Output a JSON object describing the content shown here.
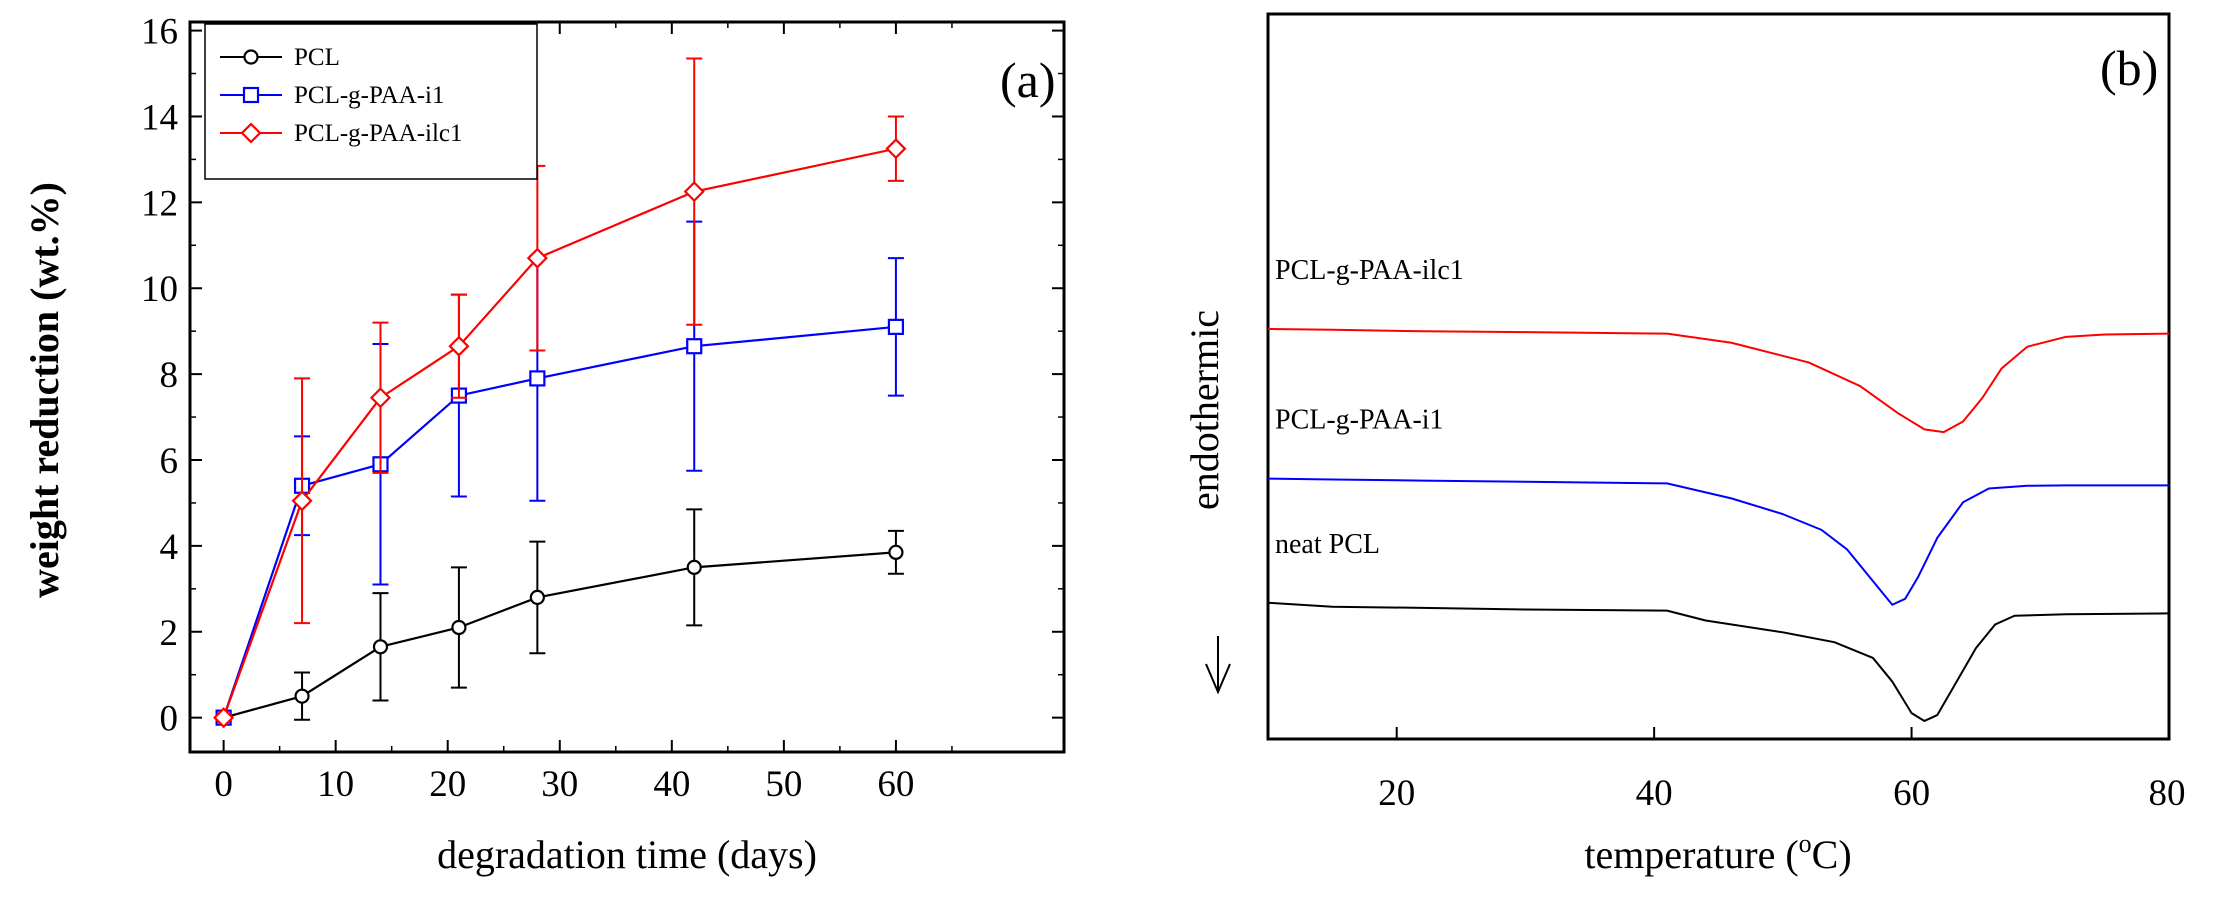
{
  "chart_data": [
    {
      "type": "line",
      "panel_label": "(a)",
      "xlabel": "degradation time (days)",
      "ylabel": "weight reduction (wt.%)",
      "xlim": [
        -3,
        75
      ],
      "ylim": [
        -0.8,
        16.2
      ],
      "xticks": [
        0,
        10,
        20,
        30,
        40,
        50,
        60
      ],
      "yticks": [
        0,
        2,
        4,
        6,
        8,
        10,
        12,
        14,
        16
      ],
      "grid": false,
      "legend": "top-left",
      "series": [
        {
          "name": "PCL",
          "color": "#000000",
          "marker": "circle",
          "x": [
            0,
            7,
            14,
            21,
            28,
            42,
            60
          ],
          "y": [
            0,
            0.5,
            1.65,
            2.1,
            2.8,
            3.5,
            3.85
          ],
          "err": [
            0,
            0.55,
            1.25,
            1.4,
            1.3,
            1.35,
            0.5
          ]
        },
        {
          "name": "PCL-g-PAA-i1",
          "color": "#0000ff",
          "marker": "square",
          "x": [
            0,
            7,
            14,
            21,
            28,
            42,
            60
          ],
          "y": [
            0,
            5.4,
            5.9,
            7.5,
            7.9,
            8.65,
            9.1
          ],
          "err": [
            0,
            1.15,
            2.8,
            2.35,
            2.85,
            2.9,
            1.6
          ]
        },
        {
          "name": "PCL-g-PAA-ilc1",
          "color": "#ff0000",
          "marker": "diamond",
          "x": [
            0,
            7,
            14,
            21,
            28,
            42,
            60
          ],
          "y": [
            0,
            5.05,
            7.45,
            8.65,
            10.7,
            12.25,
            13.25
          ],
          "err": [
            0,
            2.85,
            1.75,
            1.2,
            2.15,
            3.1,
            0.75
          ]
        }
      ]
    },
    {
      "type": "line",
      "panel_label": "(b)",
      "xlabel": "temperature (",
      "xlabel_sup": "o",
      "xlabel_tail": "C)",
      "ylabel": "endothermic",
      "xlim": [
        10,
        80
      ],
      "xticks": [
        20,
        40,
        60,
        80
      ],
      "yticks": [],
      "grid": false,
      "series": [
        {
          "name": "PCL-g-PAA-ilc1",
          "color": "#ff0000",
          "x": [
            10,
            15,
            22,
            30,
            41,
            46,
            52,
            56,
            59,
            61,
            62.5,
            64,
            65.5,
            67,
            69,
            72,
            75,
            80
          ],
          "y": [
            9.9,
            9.88,
            9.84,
            9.82,
            9.78,
            9.55,
            9.05,
            8.45,
            7.75,
            7.35,
            7.28,
            7.55,
            8.15,
            8.9,
            9.45,
            9.7,
            9.76,
            9.78
          ]
        },
        {
          "name": "PCL-g-PAA-i1",
          "color": "#0000ff",
          "x": [
            10,
            15,
            22,
            30,
            41,
            46,
            50,
            53,
            55,
            57,
            58.5,
            59.5,
            60.5,
            62,
            64,
            66,
            69,
            72,
            80
          ],
          "y": [
            6.1,
            6.08,
            6.05,
            6.02,
            5.98,
            5.6,
            5.2,
            4.8,
            4.3,
            3.5,
            2.9,
            3.05,
            3.6,
            4.6,
            5.5,
            5.85,
            5.92,
            5.93,
            5.93
          ]
        },
        {
          "name": "neat PCL",
          "color": "#000000",
          "x": [
            10,
            15,
            22,
            30,
            41,
            44,
            50,
            54,
            57,
            58.5,
            60,
            61,
            62,
            63.5,
            65,
            66.5,
            68,
            72,
            80
          ],
          "y": [
            2.95,
            2.85,
            2.82,
            2.78,
            2.75,
            2.5,
            2.2,
            1.95,
            1.55,
            0.95,
            0.15,
            -0.05,
            0.1,
            0.95,
            1.8,
            2.4,
            2.62,
            2.66,
            2.68
          ]
        }
      ]
    }
  ]
}
